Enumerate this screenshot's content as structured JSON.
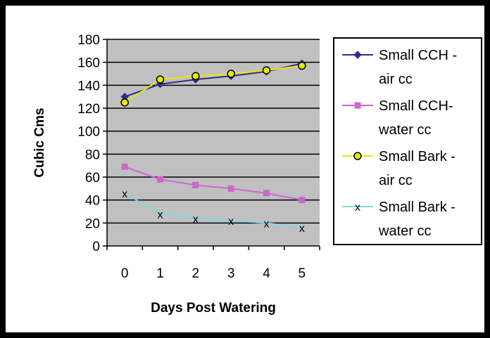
{
  "chart_data": {
    "type": "line",
    "title": "",
    "xlabel": "Days Post Watering",
    "ylabel": "Cubic Cms",
    "x": [
      0,
      1,
      2,
      3,
      4,
      5
    ],
    "ylim": [
      0,
      180
    ],
    "yticks": [
      0,
      20,
      40,
      60,
      80,
      100,
      120,
      140,
      160,
      180
    ],
    "grid": "horizontal",
    "legend_position": "right",
    "series": [
      {
        "name_lines": [
          "Small CCH -",
          "air cc"
        ],
        "values": [
          130,
          141,
          145,
          148,
          152,
          159
        ],
        "color": "#2e2e8a",
        "marker": "diamond"
      },
      {
        "name_lines": [
          "Small CCH-",
          "water cc"
        ],
        "values": [
          69,
          58,
          53,
          50,
          46,
          40
        ],
        "color": "#cc66cc",
        "marker": "square"
      },
      {
        "name_lines": [
          "Small Bark -",
          "air cc"
        ],
        "values": [
          125,
          145,
          148,
          150,
          153,
          157
        ],
        "color": "#e8e800",
        "marker": "circle"
      },
      {
        "name_lines": [
          "Small Bark -",
          "water cc"
        ],
        "values": [
          46,
          28,
          24,
          22,
          20,
          16
        ],
        "color": "#7fd8e0",
        "marker": "x"
      }
    ]
  }
}
